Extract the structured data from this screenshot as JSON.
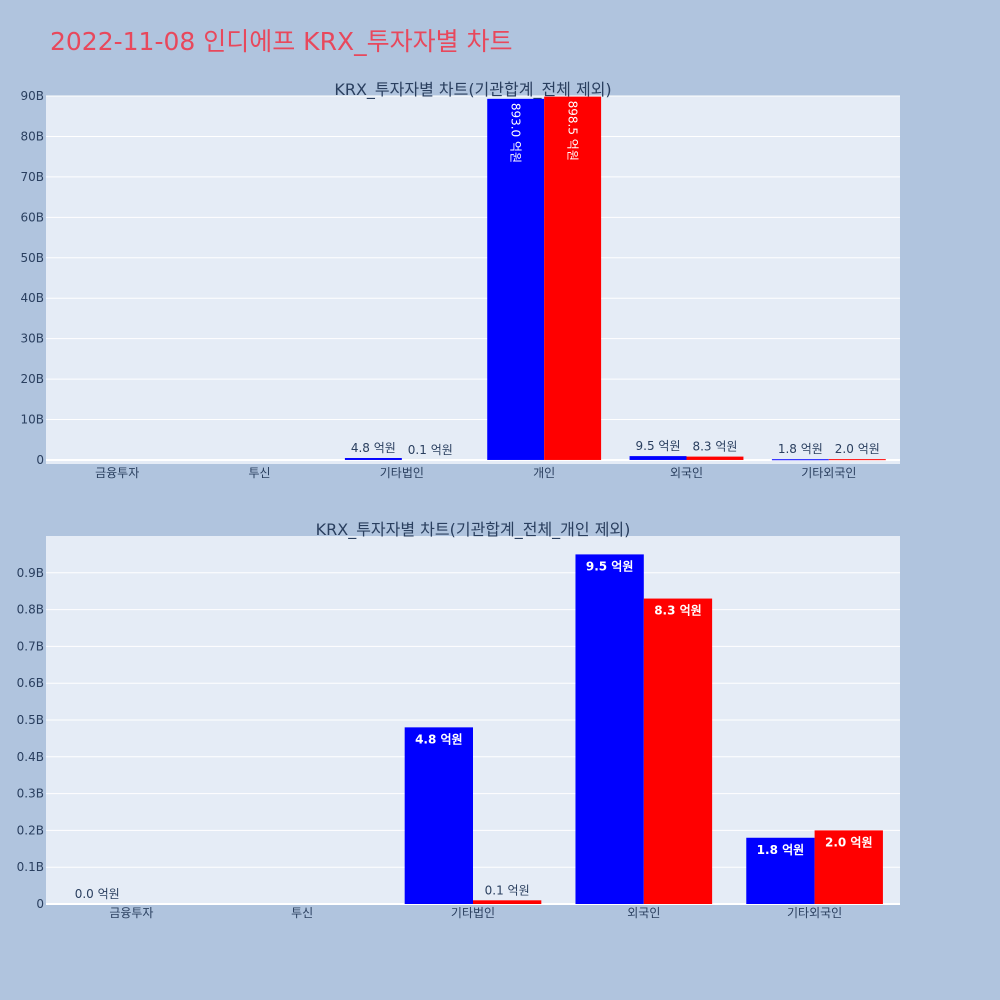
{
  "page": {
    "title": "2022-11-08 인디에프 KRX_투자자별 차트"
  },
  "colors": {
    "background": "#b0c4de",
    "plot_bg": "#e5ecf6",
    "buy": "#0000ff",
    "sell": "#ff0000",
    "title": "#e8485c",
    "text": "#2a3f5f"
  },
  "chart_data": [
    {
      "type": "bar",
      "title": "KRX_투자자별 차트(기관합계_전체 제외)",
      "categories": [
        "금융투자",
        "투신",
        "기타법인",
        "개인",
        "외국인",
        "기타외국인"
      ],
      "series": [
        {
          "color": "#0000ff",
          "values": [
            0,
            0,
            0.48,
            89.3,
            0.95,
            0.18
          ],
          "labels": [
            "",
            "",
            "4.8 억원",
            "893.0 억원",
            "9.5 억원",
            "1.8 억원"
          ]
        },
        {
          "color": "#ff0000",
          "values": [
            0,
            0,
            0.01,
            89.85,
            0.83,
            0.2
          ],
          "labels": [
            "",
            "",
            "0.1 억원",
            "898.5 억원",
            "8.3 억원",
            "2.0 억원"
          ]
        }
      ],
      "yticks": [
        "0",
        "10B",
        "20B",
        "30B",
        "40B",
        "50B",
        "60B",
        "70B",
        "80B",
        "90B"
      ],
      "ytick_values": [
        0,
        10,
        20,
        30,
        40,
        50,
        60,
        70,
        80,
        90
      ],
      "ylim": [
        -1,
        90
      ],
      "grid": true,
      "legend": "none"
    },
    {
      "type": "bar",
      "title": "KRX_투자자별 차트(기관합계_전체_개인 제외)",
      "categories": [
        "금융투자",
        "투신",
        "기타법인",
        "외국인",
        "기타외국인"
      ],
      "series": [
        {
          "color": "#0000ff",
          "values": [
            0,
            0,
            0.48,
            0.95,
            0.18
          ],
          "labels": [
            "0.0 억원",
            "",
            "4.8 억원",
            "9.5 억원",
            "1.8 억원"
          ]
        },
        {
          "color": "#ff0000",
          "values": [
            0,
            0,
            0.01,
            0.83,
            0.2
          ],
          "labels": [
            "",
            "",
            "0.1 억원",
            "8.3 억원",
            "2.0 억원"
          ]
        }
      ],
      "yticks": [
        "0",
        "0.1B",
        "0.2B",
        "0.3B",
        "0.4B",
        "0.5B",
        "0.6B",
        "0.7B",
        "0.8B",
        "0.9B"
      ],
      "ytick_values": [
        0,
        0.1,
        0.2,
        0.3,
        0.4,
        0.5,
        0.6,
        0.7,
        0.8,
        0.9
      ],
      "ylim": [
        0,
        1.0
      ],
      "grid": true,
      "legend": "none"
    }
  ]
}
